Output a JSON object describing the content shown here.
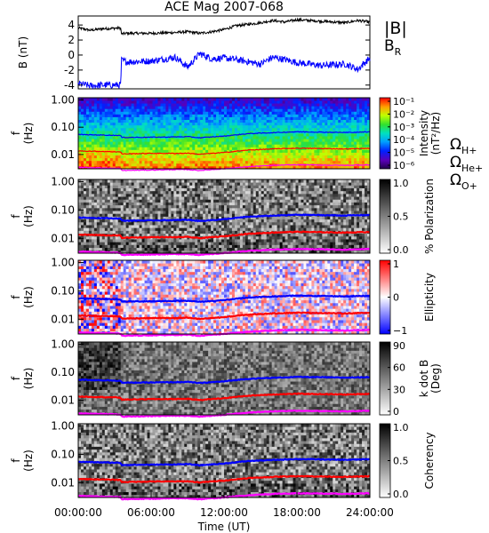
{
  "title": "ACE Mag 2007-068",
  "xlabel": "Time (UT)",
  "x_ticks": [
    "00:00:00",
    "06:00:00",
    "12:00:00",
    "18:00:00",
    "24:00:00"
  ],
  "colors": {
    "BR": "#0000ff",
    "B": "#000000",
    "OmegaH": "#0000ff",
    "OmegaHe": "#ff0000",
    "OmegaO": "#ff00ff"
  },
  "chart_data": [
    {
      "type": "line",
      "panel": "B",
      "ylabel": "B (nT)",
      "ylim": [
        -4.5,
        5.2
      ],
      "y_ticks": [
        "4",
        "2",
        "0",
        "-2",
        "-4"
      ],
      "legend": [
        {
          "label": "|B|",
          "color": "#000000"
        },
        {
          "label": "B",
          "sub": "R",
          "color": "#0000ff"
        }
      ],
      "x": [
        0,
        1,
        2,
        3.5,
        3.55,
        4,
        6,
        8,
        9,
        10,
        11,
        12,
        13,
        15,
        16,
        17,
        18,
        20,
        22,
        23,
        24
      ],
      "series": [
        {
          "key": "B",
          "values": [
            3.6,
            3.3,
            3.5,
            3.6,
            2.8,
            2.9,
            2.9,
            3.0,
            3.1,
            2.9,
            3.1,
            3.4,
            3.9,
            4.3,
            4.6,
            4.4,
            4.7,
            4.5,
            4.3,
            4.6,
            4.4
          ]
        },
        {
          "key": "BR",
          "values": [
            -3.8,
            -4.1,
            -4.0,
            -4.0,
            -0.7,
            -0.9,
            -0.8,
            -0.3,
            -1.6,
            0.2,
            -0.5,
            -0.4,
            -0.6,
            -1.2,
            -0.3,
            -0.6,
            -1.0,
            -1.4,
            -1.2,
            -1.9,
            -0.4
          ]
        }
      ]
    },
    {
      "type": "heatmap",
      "panel": "Intensity",
      "ylabel": "f (Hz)",
      "y_ticks": [
        "1.00",
        "0.10",
        "0.01"
      ],
      "colorbar_label": "Intensity (nT²/Hz)",
      "colorbar_ticks": [
        "10⁻¹",
        "10⁻²",
        "10⁻³",
        "10⁻⁴",
        "10⁻⁵",
        "10⁻⁶"
      ],
      "legend": [
        {
          "label": "Ω",
          "sub": "H+",
          "color": "#0000ff"
        },
        {
          "label": "Ω",
          "sub": "He+",
          "color": "#ff0000"
        },
        {
          "label": "Ω",
          "sub": "O+",
          "color": "#ff00ff"
        }
      ]
    },
    {
      "type": "heatmap",
      "panel": "Polarization",
      "ylabel": "f (Hz)",
      "y_ticks": [
        "1.00",
        "0.10",
        "0.01"
      ],
      "colorbar_label": "% Polarization",
      "colorbar_ticks": [
        "1.0",
        "0.5",
        "0.0"
      ]
    },
    {
      "type": "heatmap",
      "panel": "Ellipticity",
      "ylabel": "f (Hz)",
      "y_ticks": [
        "1.00",
        "0.10",
        "0.01"
      ],
      "colorbar_label": "Ellipticity",
      "colorbar_ticks": [
        "1",
        "0",
        "−1"
      ]
    },
    {
      "type": "heatmap",
      "panel": "kdotB",
      "ylabel": "f (Hz)",
      "y_ticks": [
        "1.00",
        "0.10",
        "0.01"
      ],
      "colorbar_label": "k dot B (Deg)",
      "colorbar_ticks": [
        "90",
        "60",
        "30",
        "0"
      ]
    },
    {
      "type": "heatmap",
      "panel": "Coherency",
      "ylabel": "f (Hz)",
      "y_ticks": [
        "1.00",
        "0.10",
        "0.01"
      ],
      "colorbar_label": "Coherency",
      "colorbar_ticks": [
        "1.0",
        "0.5",
        "0.0"
      ]
    }
  ],
  "cyclotron_lines": {
    "x": [
      0,
      3.5,
      3.55,
      6,
      8,
      9,
      10,
      11,
      12,
      14,
      16,
      18,
      20,
      22,
      24
    ],
    "f_H": [
      0.054,
      0.05,
      0.042,
      0.043,
      0.044,
      0.045,
      0.041,
      0.044,
      0.047,
      0.058,
      0.063,
      0.068,
      0.066,
      0.064,
      0.067
    ],
    "f_He": [
      0.0135,
      0.0125,
      0.0105,
      0.011,
      0.011,
      0.0112,
      0.0102,
      0.011,
      0.0118,
      0.0145,
      0.016,
      0.017,
      0.0165,
      0.016,
      0.0168
    ],
    "f_O": [
      0.0034,
      0.0031,
      0.0026,
      0.0027,
      0.0028,
      0.0028,
      0.0026,
      0.0028,
      0.003,
      0.0036,
      0.004,
      0.0042,
      0.0041,
      0.004,
      0.0042
    ]
  }
}
